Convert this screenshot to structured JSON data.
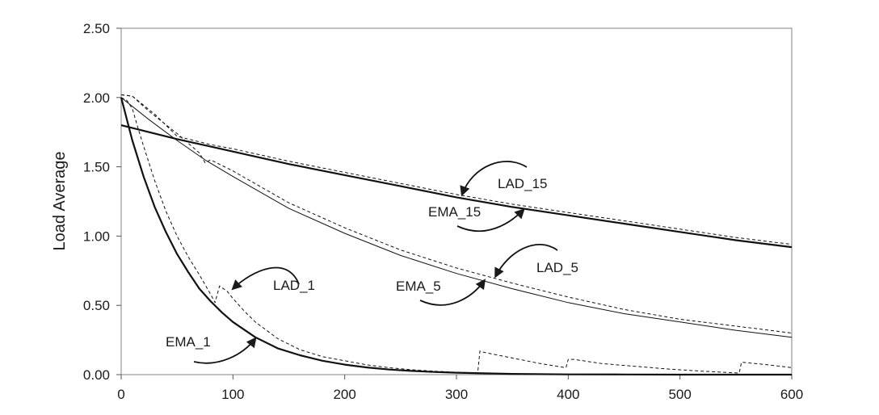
{
  "chart_data": {
    "type": "line",
    "title": "",
    "xlabel": "",
    "ylabel": "Load Average",
    "xlim": [
      0,
      600
    ],
    "ylim": [
      0,
      2.5
    ],
    "x_ticks": [
      "0",
      "100",
      "200",
      "300",
      "400",
      "500",
      "600"
    ],
    "y_ticks": [
      "0.00",
      "0.50",
      "1.00",
      "1.50",
      "2.00",
      "2.50"
    ],
    "grid": false,
    "legend": "none",
    "series": [
      {
        "name": "EMA_1",
        "style": "solid",
        "weight": "bold",
        "x": [
          0,
          10,
          20,
          30,
          40,
          50,
          60,
          70,
          80,
          90,
          100,
          120,
          140,
          160,
          180,
          200,
          220,
          240,
          260,
          280,
          300,
          350,
          400,
          450,
          500,
          550,
          600
        ],
        "y": [
          2.0,
          1.69,
          1.43,
          1.21,
          1.03,
          0.87,
          0.74,
          0.62,
          0.53,
          0.45,
          0.38,
          0.27,
          0.19,
          0.14,
          0.1,
          0.072,
          0.052,
          0.037,
          0.027,
          0.019,
          0.014,
          0.005,
          0.002,
          0.001,
          0.0,
          0.0,
          0.0
        ]
      },
      {
        "name": "LAD_1",
        "style": "dashed",
        "weight": "thin",
        "x": [
          0,
          5,
          10,
          15,
          20,
          30,
          40,
          50,
          60,
          70,
          80,
          84,
          88,
          95,
          100,
          110,
          120,
          140,
          160,
          180,
          200,
          220,
          240,
          260,
          280,
          300,
          319,
          321,
          325,
          350,
          375,
          398,
          400,
          405,
          430,
          460,
          490,
          520,
          550,
          553,
          555,
          580,
          600
        ],
        "y": [
          2.0,
          1.98,
          1.92,
          1.78,
          1.65,
          1.4,
          1.18,
          1.0,
          0.85,
          0.72,
          0.58,
          0.52,
          0.64,
          0.6,
          0.55,
          0.46,
          0.38,
          0.26,
          0.18,
          0.13,
          0.1,
          0.07,
          0.05,
          0.035,
          0.025,
          0.017,
          0.013,
          0.17,
          0.16,
          0.12,
          0.08,
          0.05,
          0.11,
          0.11,
          0.08,
          0.06,
          0.04,
          0.025,
          0.012,
          0.012,
          0.09,
          0.07,
          0.05
        ]
      },
      {
        "name": "EMA_5",
        "style": "solid",
        "weight": "thin",
        "x": [
          0,
          25,
          50,
          75,
          100,
          150,
          200,
          250,
          300,
          350,
          400,
          450,
          500,
          550,
          600
        ],
        "y": [
          2.0,
          1.84,
          1.69,
          1.55,
          1.43,
          1.2,
          1.02,
          0.86,
          0.73,
          0.62,
          0.52,
          0.44,
          0.38,
          0.32,
          0.27
        ]
      },
      {
        "name": "LAD_5",
        "style": "dashed",
        "weight": "thin",
        "x": [
          0,
          10,
          25,
          50,
          70,
          75,
          80,
          100,
          150,
          200,
          250,
          300,
          350,
          400,
          450,
          500,
          550,
          600
        ],
        "y": [
          2.02,
          2.01,
          1.9,
          1.74,
          1.6,
          1.53,
          1.55,
          1.47,
          1.24,
          1.06,
          0.9,
          0.77,
          0.66,
          0.56,
          0.47,
          0.4,
          0.35,
          0.3
        ]
      },
      {
        "name": "EMA_15",
        "style": "solid",
        "weight": "bold",
        "x": [
          0,
          50,
          100,
          150,
          200,
          250,
          300,
          350,
          400,
          450,
          500,
          550,
          600
        ],
        "y": [
          1.8,
          1.7,
          1.61,
          1.52,
          1.44,
          1.36,
          1.28,
          1.21,
          1.15,
          1.09,
          1.03,
          0.97,
          0.92
        ]
      },
      {
        "name": "LAD_15",
        "style": "dashed",
        "weight": "thin",
        "x": [
          0,
          10,
          30,
          50,
          80,
          100,
          150,
          200,
          250,
          300,
          350,
          400,
          450,
          500,
          550,
          600
        ],
        "y": [
          2.02,
          2.01,
          1.88,
          1.72,
          1.66,
          1.63,
          1.54,
          1.46,
          1.38,
          1.3,
          1.23,
          1.17,
          1.11,
          1.05,
          0.99,
          0.94
        ]
      }
    ],
    "annotations": [
      {
        "text": "LAD_1",
        "target_series": "LAD_1",
        "target": [
          100,
          0.62
        ]
      },
      {
        "text": "EMA_1",
        "target_series": "EMA_1",
        "target": [
          120,
          0.26
        ]
      },
      {
        "text": "EMA_5",
        "target_series": "EMA_5",
        "target": [
          325,
          0.68
        ]
      },
      {
        "text": "LAD_5",
        "target_series": "LAD_5",
        "target": [
          335,
          0.71
        ]
      },
      {
        "text": "EMA_15",
        "target_series": "EMA_15",
        "target": [
          360,
          1.19
        ]
      },
      {
        "text": "LAD_15",
        "target_series": "LAD_15",
        "target": [
          305,
          1.3
        ]
      }
    ]
  }
}
